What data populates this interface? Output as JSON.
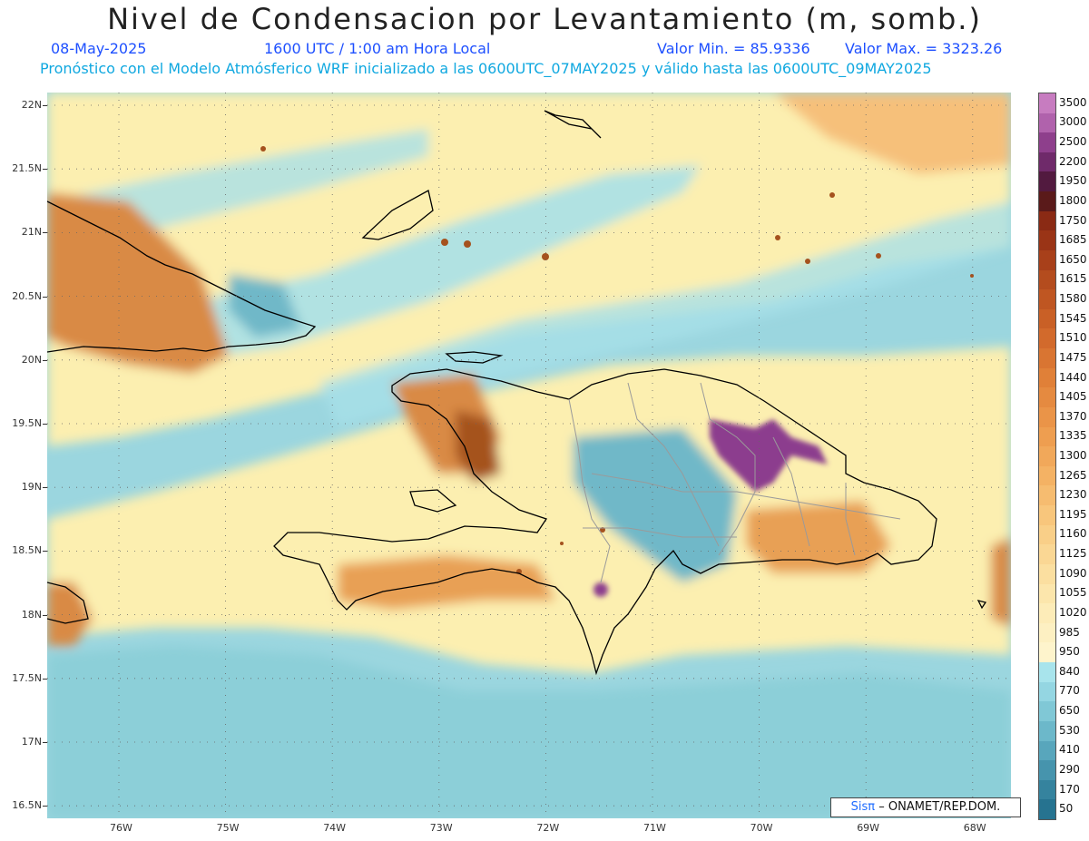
{
  "title": "Nivel de Condensacion por Levantamiento (m, somb.)",
  "date": "08-May-2025",
  "time": "1600 UTC / 1:00 am Hora Local",
  "min_label": "Valor Min. = 85.9336",
  "max_label": "Valor Max. = 3323.26",
  "forecast_note": "Pronóstico con el Modelo Atmósferico WRF inicializado a las 0600UTC_07MAY2025 y válido hasta las  0600UTC_09MAY2025",
  "credit": {
    "brand": "Sisπ",
    "text": "– ONAMET/REP.DOM."
  },
  "lat_labels": [
    "22N",
    "21.5N",
    "21N",
    "20.5N",
    "20N",
    "19.5N",
    "19N",
    "18.5N",
    "18N",
    "17.5N",
    "17N",
    "16.5N"
  ],
  "lon_labels": [
    "76W",
    "75W",
    "74W",
    "73W",
    "72W",
    "71W",
    "70W",
    "69W",
    "68W"
  ],
  "legend": {
    "labels": [
      "3500",
      "3000",
      "2500",
      "2200",
      "1950",
      "1800",
      "1750",
      "1685",
      "1650",
      "1615",
      "1580",
      "1545",
      "1510",
      "1475",
      "1440",
      "1405",
      "1370",
      "1335",
      "1300",
      "1265",
      "1230",
      "1195",
      "1160",
      "1125",
      "1090",
      "1055",
      "1020",
      "985",
      "950",
      "840",
      "770",
      "650",
      "530",
      "410",
      "290",
      "170",
      "50"
    ],
    "colors": [
      "#c77cc0",
      "#b062ac",
      "#8e3f8c",
      "#6f2a6a",
      "#521a3f",
      "#5a1a1a",
      "#8a2a14",
      "#9a3416",
      "#a8401a",
      "#b44c1e",
      "#bf5622",
      "#c96026",
      "#d26a2c",
      "#d97532",
      "#e08038",
      "#e58a40",
      "#ea9448",
      "#ee9e50",
      "#f1a85a",
      "#f4b264",
      "#f6bc70",
      "#f8c67c",
      "#f9cf88",
      "#fad794",
      "#fbdfa0",
      "#fce6ac",
      "#fdecb8",
      "#fdf0c2",
      "#fef4cc",
      "#a8e4ec",
      "#94d6e2",
      "#80c8d6",
      "#6cb8ca",
      "#58a6bc",
      "#4694ad",
      "#35839e",
      "#267390"
    ],
    "colors_ref": "legend fill colors, top to bottom"
  },
  "colors": {
    "sea_low": "#7ec8d4",
    "sea_mid": "#a8e0e8",
    "yellow": "#fcefb0",
    "orange": "#d98a45",
    "brown": "#a5521e",
    "purple": "#8c3e8e",
    "coast": "#000000",
    "border": "#999999"
  }
}
